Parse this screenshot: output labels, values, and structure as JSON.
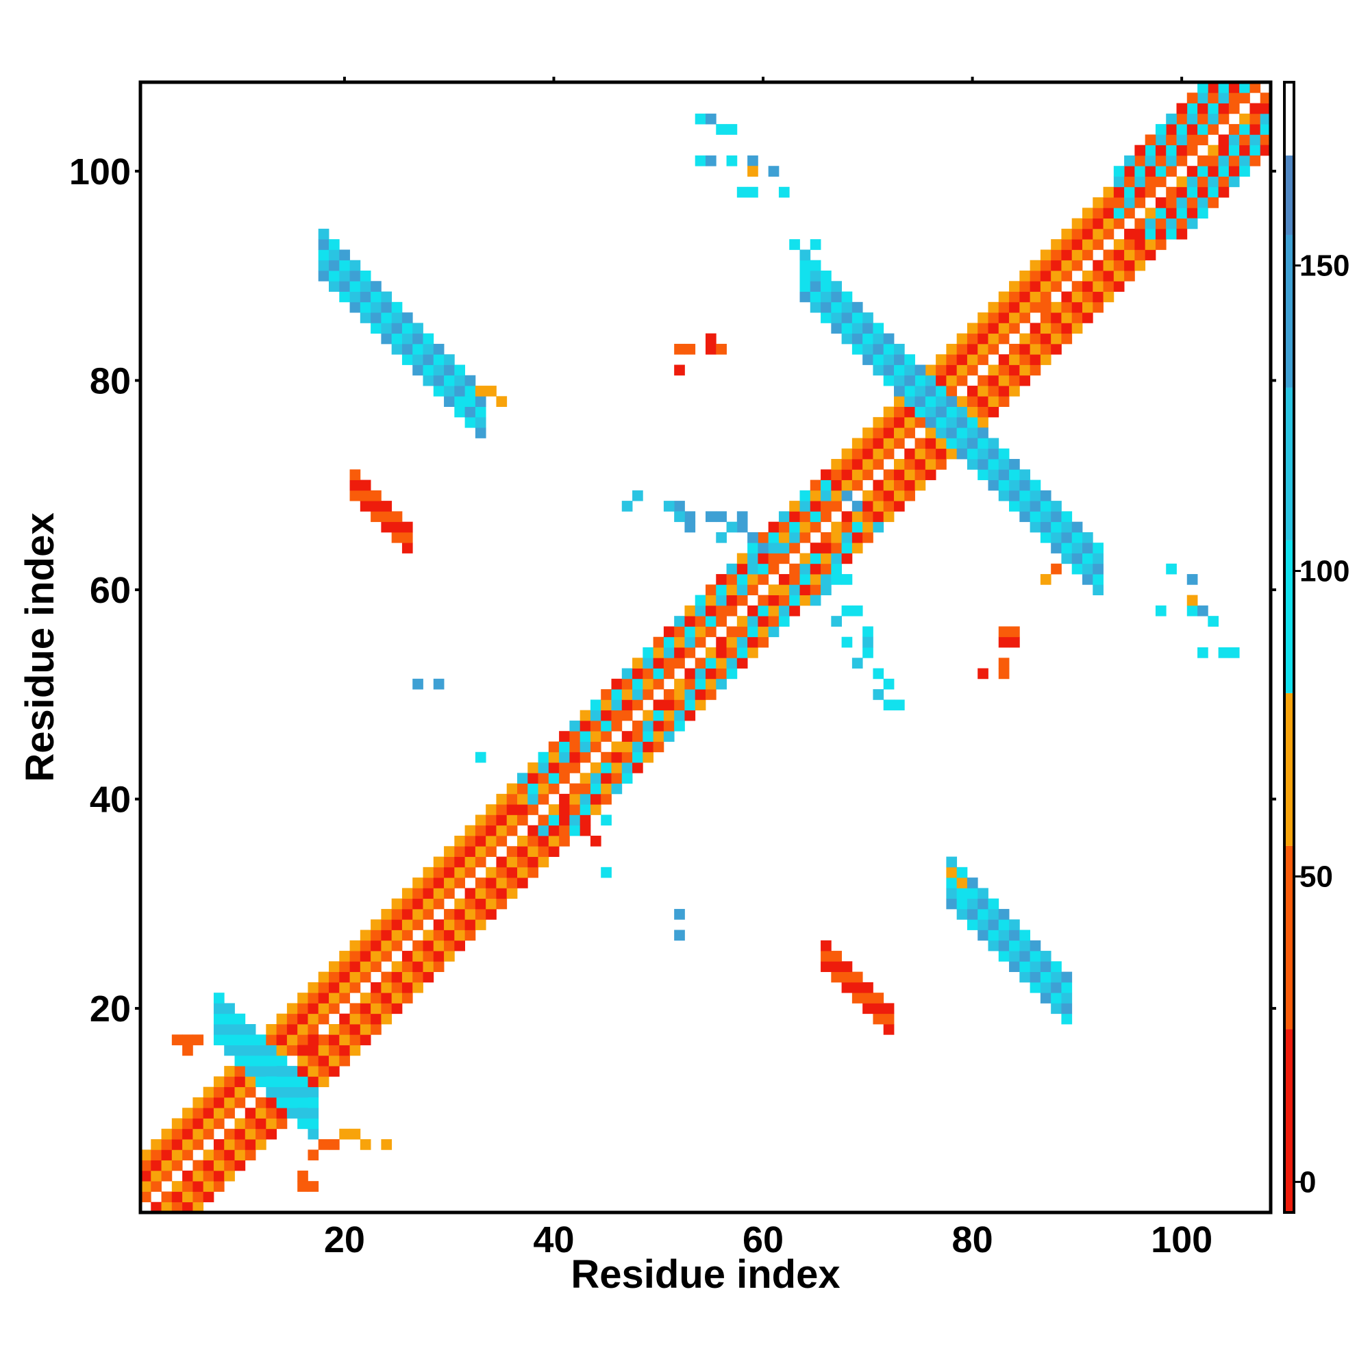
{
  "chart_data": {
    "type": "heatmap",
    "title": "",
    "xlabel": "Residue index",
    "ylabel": "Residue index",
    "xlim": [
      1,
      108
    ],
    "ylim": [
      1,
      108
    ],
    "x_ticks": [
      20,
      40,
      60,
      80,
      100
    ],
    "y_ticks": [
      20,
      40,
      60,
      80,
      100
    ],
    "x_tick_labels": [
      "20",
      "40",
      "60",
      "80",
      "100"
    ],
    "y_tick_labels": [
      "20",
      "40",
      "60",
      "80",
      "100"
    ],
    "grid": false,
    "legend": "none",
    "colorbar": {
      "min": -5,
      "max": 180,
      "ticks": [
        0,
        50,
        100,
        150
      ],
      "tick_labels": [
        "0",
        "50",
        "100",
        "150"
      ],
      "bands": [
        {
          "from": -5,
          "to": 25,
          "color": "#ee1c0c"
        },
        {
          "from": 25,
          "to": 55,
          "color": "#f95c0a"
        },
        {
          "from": 55,
          "to": 80,
          "color": "#f8a30b"
        },
        {
          "from": 80,
          "to": 105,
          "color": "#12e1ee"
        },
        {
          "from": 105,
          "to": 130,
          "color": "#2ac4e2"
        },
        {
          "from": 130,
          "to": 155,
          "color": "#3ea0d4"
        },
        {
          "from": 155,
          "to": 168,
          "color": "#4f87c4"
        },
        {
          "from": 168,
          "to": 180,
          "color": "#ffffff"
        }
      ]
    },
    "colors": {
      "red": "#ee1c0c",
      "orange_red": "#f95c0a",
      "orange": "#f8a30b",
      "cyan": "#12e1ee",
      "sky": "#2ac4e2",
      "steel": "#3ea0d4",
      "blue": "#4f87c4"
    },
    "cell_classes": {
      "R": "red, ~10",
      "O": "orange-red, ~40",
      "Y": "orange, ~65",
      "C": "cyan, ~95",
      "S": "sky blue, ~120",
      "B": "steel blue, ~145"
    },
    "rules": [
      {
        "type": "diag_band",
        "d0": 1,
        "d1": 5,
        "i0": 1,
        "i1": 108,
        "colors": "ROY"
      },
      {
        "type": "diag_band",
        "d0": 2,
        "d1": 5,
        "i0": 37,
        "i1": 66,
        "colors": "OSCRY"
      },
      {
        "type": "diag_band",
        "d0": 2,
        "d1": 6,
        "i0": 94,
        "i1": 108,
        "colors": "CORS"
      },
      {
        "type": "anti_band",
        "s0": 25,
        "s1": 29,
        "i0": 8,
        "i1": 17,
        "colors": "SC"
      },
      {
        "type": "anti_band",
        "s0": 152,
        "s1": 156,
        "i0": 64,
        "i1": 92,
        "colors": "BSC"
      },
      {
        "type": "anti_band",
        "s0": 108,
        "s1": 112,
        "i0": 18,
        "i1": 33,
        "colors": "BSC"
      },
      {
        "type": "anti_band",
        "s0": 108,
        "s1": 112,
        "i0": 78,
        "i1": 89,
        "colors": "BSC"
      },
      {
        "type": "anti_band",
        "s0": 90,
        "s1": 92,
        "i0": 21,
        "i1": 26,
        "colors": "RO"
      },
      {
        "type": "anti_band",
        "s0": 90,
        "s1": 92,
        "i0": 66,
        "i1": 72,
        "colors": "RO"
      },
      {
        "type": "cells",
        "color": "C",
        "pts": [
          [
            54,
            105
          ],
          [
            56,
            104
          ],
          [
            57,
            104
          ],
          [
            54,
            101
          ],
          [
            57,
            101
          ],
          [
            58,
            98
          ],
          [
            59,
            98
          ],
          [
            62,
            98
          ],
          [
            63,
            93
          ],
          [
            65,
            93
          ],
          [
            64,
            91
          ],
          [
            66,
            90
          ],
          [
            64,
            89
          ],
          [
            99,
            62
          ],
          [
            98,
            58
          ],
          [
            101,
            58
          ],
          [
            103,
            57
          ],
          [
            102,
            54
          ],
          [
            104,
            54
          ],
          [
            105,
            54
          ],
          [
            67,
            61
          ],
          [
            68,
            61
          ],
          [
            68,
            58
          ],
          [
            69,
            58
          ],
          [
            70,
            56
          ],
          [
            68,
            55
          ],
          [
            70,
            54
          ],
          [
            71,
            52
          ],
          [
            72,
            51
          ],
          [
            72,
            49
          ],
          [
            73,
            49
          ],
          [
            32,
            78
          ],
          [
            33,
            77
          ],
          [
            31,
            77
          ],
          [
            79,
            32
          ],
          [
            79,
            31
          ],
          [
            33,
            44
          ],
          [
            45,
            33
          ],
          [
            45,
            38
          ]
        ]
      },
      {
        "type": "cells",
        "color": "B",
        "pts": [
          [
            55,
            105
          ],
          [
            55,
            101
          ],
          [
            59,
            101
          ],
          [
            61,
            100
          ],
          [
            101,
            61
          ],
          [
            102,
            58
          ],
          [
            27,
            51
          ],
          [
            29,
            51
          ],
          [
            52,
            27
          ],
          [
            52,
            29
          ],
          [
            68,
            69
          ],
          [
            69,
            68
          ],
          [
            52,
            68
          ],
          [
            53,
            67
          ],
          [
            53,
            66
          ],
          [
            55,
            67
          ],
          [
            56,
            67
          ],
          [
            58,
            66
          ],
          [
            58,
            67
          ],
          [
            59,
            65
          ],
          [
            60,
            64
          ]
        ]
      },
      {
        "type": "cells",
        "color": "S",
        "pts": [
          [
            47,
            68
          ],
          [
            48,
            69
          ],
          [
            51,
            68
          ],
          [
            52,
            67
          ],
          [
            56,
            65
          ],
          [
            57,
            66
          ],
          [
            59,
            62
          ],
          [
            62,
            64
          ],
          [
            65,
            59
          ],
          [
            66,
            60
          ],
          [
            67,
            57
          ],
          [
            70,
            55
          ],
          [
            69,
            53
          ],
          [
            71,
            50
          ]
        ]
      },
      {
        "type": "cells",
        "color": "R",
        "pts": [
          [
            55,
            84
          ],
          [
            55,
            83
          ],
          [
            52,
            81
          ],
          [
            83,
            55
          ],
          [
            84,
            55
          ],
          [
            81,
            52
          ],
          [
            41,
            38
          ],
          [
            43,
            37
          ],
          [
            44,
            36
          ],
          [
            17,
            16
          ],
          [
            17,
            17
          ],
          [
            16,
            16
          ]
        ]
      },
      {
        "type": "cells",
        "color": "O",
        "pts": [
          [
            52,
            83
          ],
          [
            53,
            83
          ],
          [
            56,
            83
          ],
          [
            83,
            52
          ],
          [
            83,
            53
          ],
          [
            87,
            87
          ],
          [
            86,
            87
          ],
          [
            88,
            62
          ],
          [
            83,
            56
          ],
          [
            84,
            56
          ],
          [
            42,
            45
          ],
          [
            43,
            44
          ],
          [
            43,
            41
          ],
          [
            4,
            17
          ],
          [
            5,
            17
          ],
          [
            5,
            16
          ],
          [
            6,
            17
          ],
          [
            16,
            3
          ],
          [
            17,
            3
          ],
          [
            16,
            4
          ],
          [
            17,
            6
          ],
          [
            18,
            7
          ],
          [
            19,
            7
          ]
        ]
      },
      {
        "type": "cells",
        "color": "Y",
        "pts": [
          [
            59,
            100
          ],
          [
            33,
            79
          ],
          [
            34,
            79
          ],
          [
            35,
            78
          ],
          [
            78,
            33
          ],
          [
            79,
            32
          ],
          [
            87,
            61
          ],
          [
            101,
            59
          ],
          [
            44,
            43
          ],
          [
            20,
            8
          ],
          [
            21,
            8
          ],
          [
            22,
            7
          ],
          [
            24,
            7
          ]
        ]
      }
    ],
    "color_key": {
      "R": "red",
      "O": "orange_red",
      "Y": "orange",
      "C": "cyan",
      "S": "sky",
      "B": "steel"
    }
  }
}
